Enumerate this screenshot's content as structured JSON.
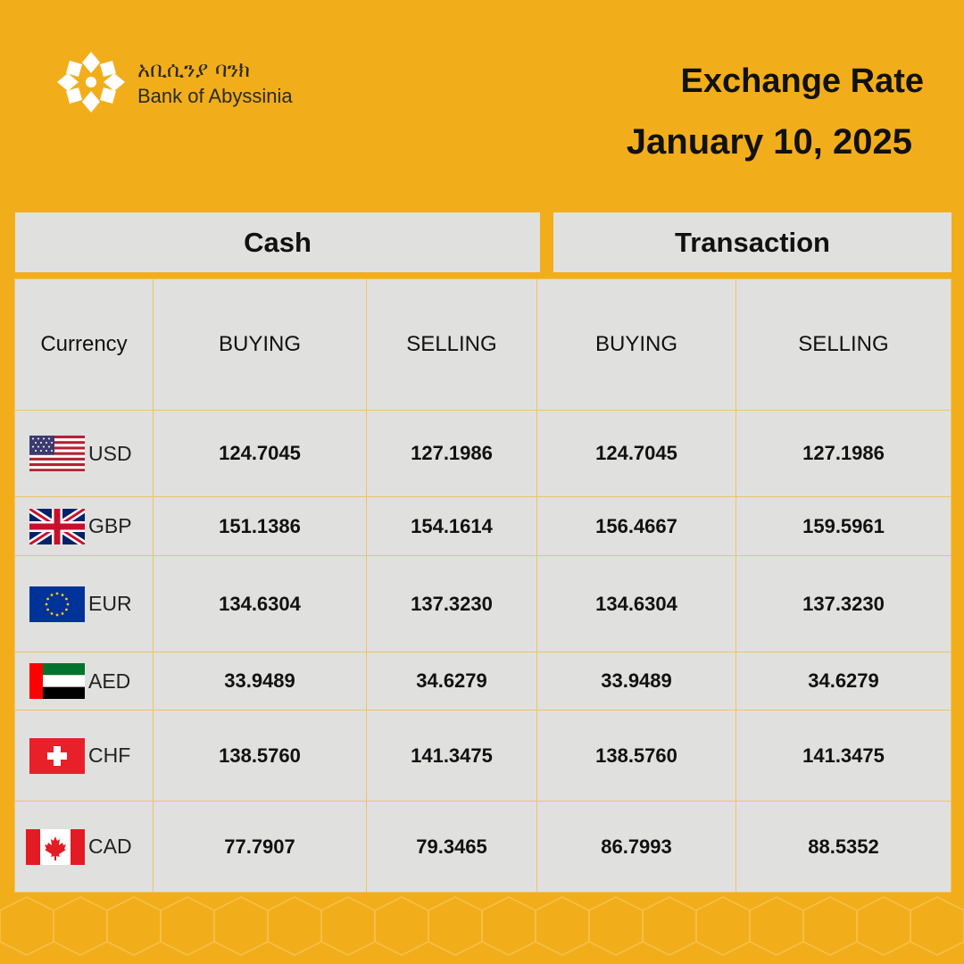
{
  "brand": {
    "name_amharic": "አቢሲንያ ባንክ",
    "name_english": "Bank of Abyssinia",
    "logo_icon": "star-flower-logo-icon"
  },
  "header": {
    "title": "Exchange Rate",
    "date": "January 10, 2025"
  },
  "groups": {
    "cash": "Cash",
    "transaction": "Transaction"
  },
  "columns": {
    "currency": "Currency",
    "cash_buying": "BUYING",
    "cash_selling": "SELLING",
    "tx_buying": "BUYING",
    "tx_selling": "SELLING"
  },
  "rows": [
    {
      "code": "USD",
      "flag": "us-flag-icon",
      "cash_buying": "124.7045",
      "cash_selling": "127.1986",
      "tx_buying": "124.7045",
      "tx_selling": "127.1986"
    },
    {
      "code": "GBP",
      "flag": "uk-flag-icon",
      "cash_buying": "151.1386",
      "cash_selling": "154.1614",
      "tx_buying": "156.4667",
      "tx_selling": "159.5961"
    },
    {
      "code": "EUR",
      "flag": "eu-flag-icon",
      "cash_buying": "134.6304",
      "cash_selling": "137.3230",
      "tx_buying": "134.6304",
      "tx_selling": "137.3230"
    },
    {
      "code": "AED",
      "flag": "uae-flag-icon",
      "cash_buying": "33.9489",
      "cash_selling": "34.6279",
      "tx_buying": "33.9489",
      "tx_selling": "34.6279"
    },
    {
      "code": "CHF",
      "flag": "swiss-flag-icon",
      "cash_buying": "138.5760",
      "cash_selling": "141.3475",
      "tx_buying": "138.5760",
      "tx_selling": "141.3475"
    },
    {
      "code": "CAD",
      "flag": "canada-flag-icon",
      "cash_buying": "77.7907",
      "cash_selling": "79.3465",
      "tx_buying": "86.7993",
      "tx_selling": "88.5352"
    }
  ],
  "colors": {
    "background": "#F2AE1A",
    "table_fill": "#E0E0DF",
    "grid_line": "#EFC367",
    "text": "#111111"
  }
}
